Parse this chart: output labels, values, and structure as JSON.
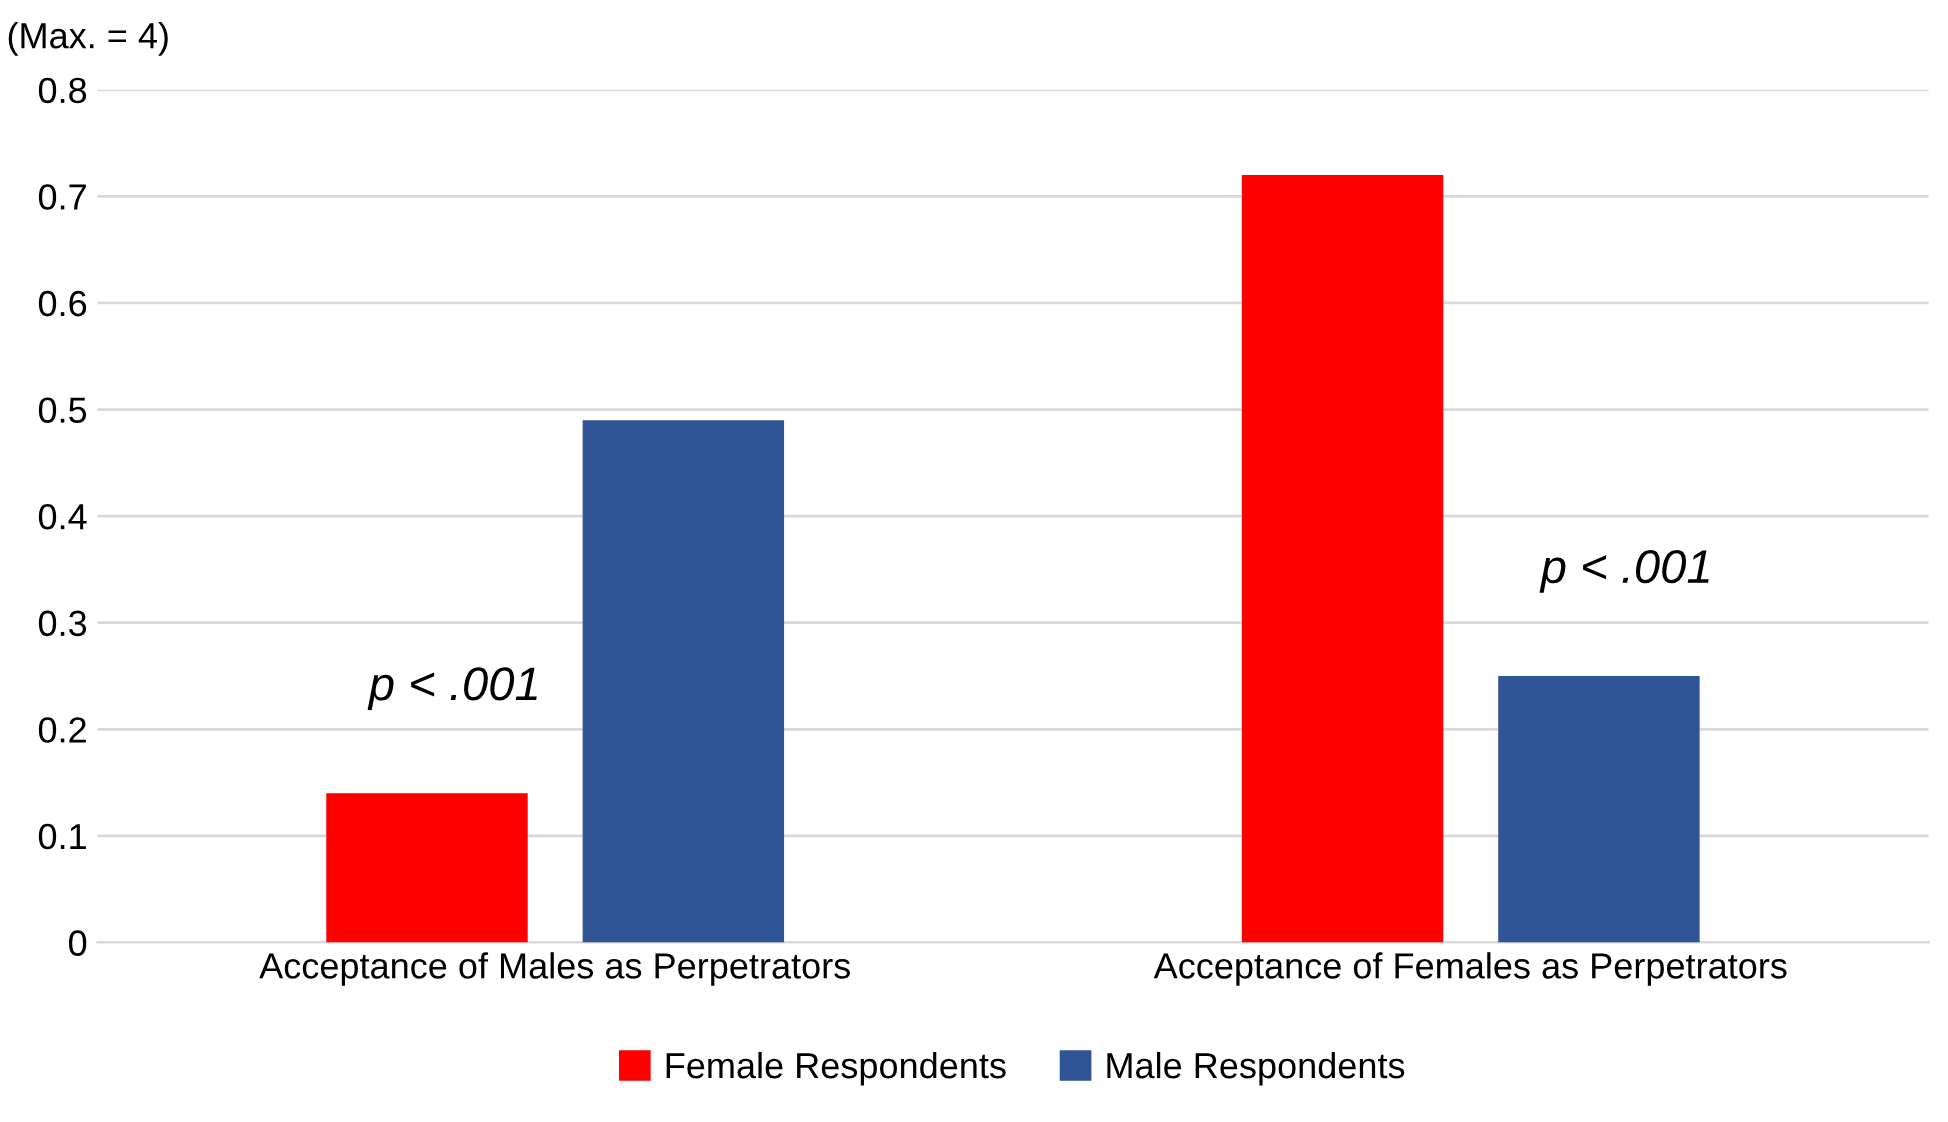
{
  "chart_data": {
    "type": "bar",
    "ylabel": "(Max. = 4)",
    "categories": [
      "Acceptance of Males as Perpetrators",
      "Acceptance of Females as Perpetrators"
    ],
    "series": [
      {
        "name": "Female Respondents",
        "color": "#ff0000",
        "values": [
          0.14,
          0.72
        ]
      },
      {
        "name": "Male Respondents",
        "color": "#2f5597",
        "values": [
          0.49,
          0.25
        ]
      }
    ],
    "ylim": [
      0,
      0.8
    ],
    "yticks": [
      0,
      0.1,
      0.2,
      0.3,
      0.4,
      0.5,
      0.6,
      0.7,
      0.8
    ],
    "grid": "y",
    "legend": "bottom",
    "annotations": [
      "p < .001",
      "p < .001"
    ]
  }
}
